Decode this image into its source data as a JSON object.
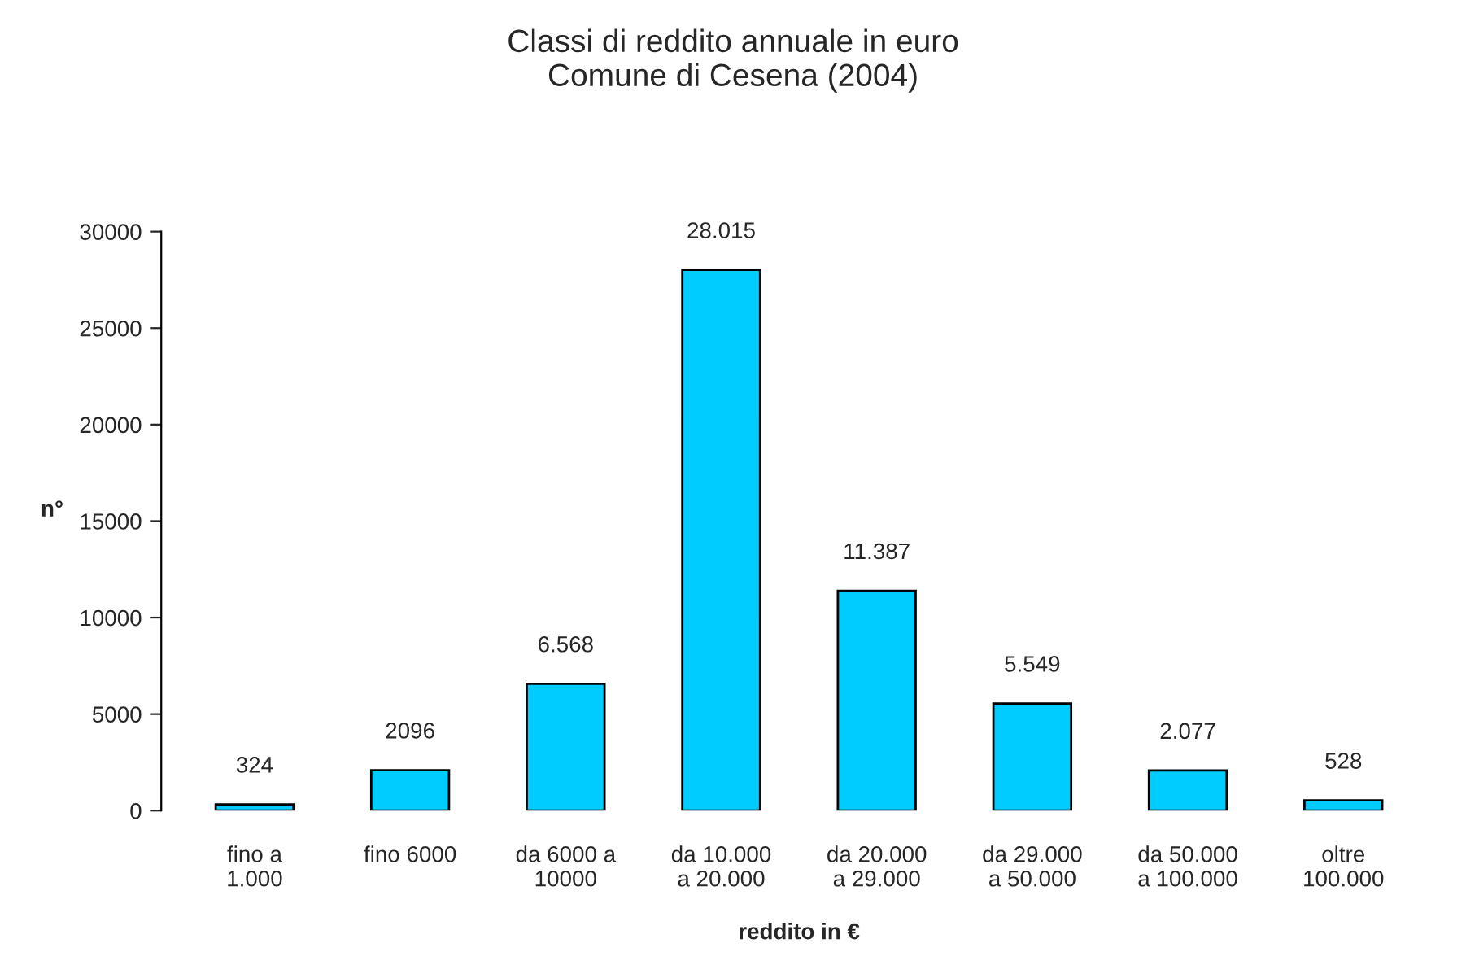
{
  "chart_data": {
    "type": "bar",
    "title": "Classi di reddito annuale in euro\nComune di Cesena (2004)",
    "xlabel": "reddito in €",
    "ylabel": "n°",
    "categories": [
      "fino a\n1.000",
      "fino 6000",
      "da 6000 a\n10000",
      "da 10.000\na 20.000",
      "da 20.000\na 29.000",
      "da 29.000\na 50.000",
      "da 50.000\na 100.000",
      "oltre\n100.000"
    ],
    "values": [
      324,
      2096,
      6568,
      28015,
      11387,
      5549,
      2077,
      528
    ],
    "value_labels": [
      "324",
      "2096",
      "6.568",
      "28.015",
      "11.387",
      "5.549",
      "2.077",
      "528"
    ],
    "color": "#00ccff",
    "ylim": [
      0,
      30000
    ],
    "yticks": [
      0,
      5000,
      10000,
      15000,
      20000,
      25000,
      30000
    ],
    "grid": false,
    "legend": false
  }
}
